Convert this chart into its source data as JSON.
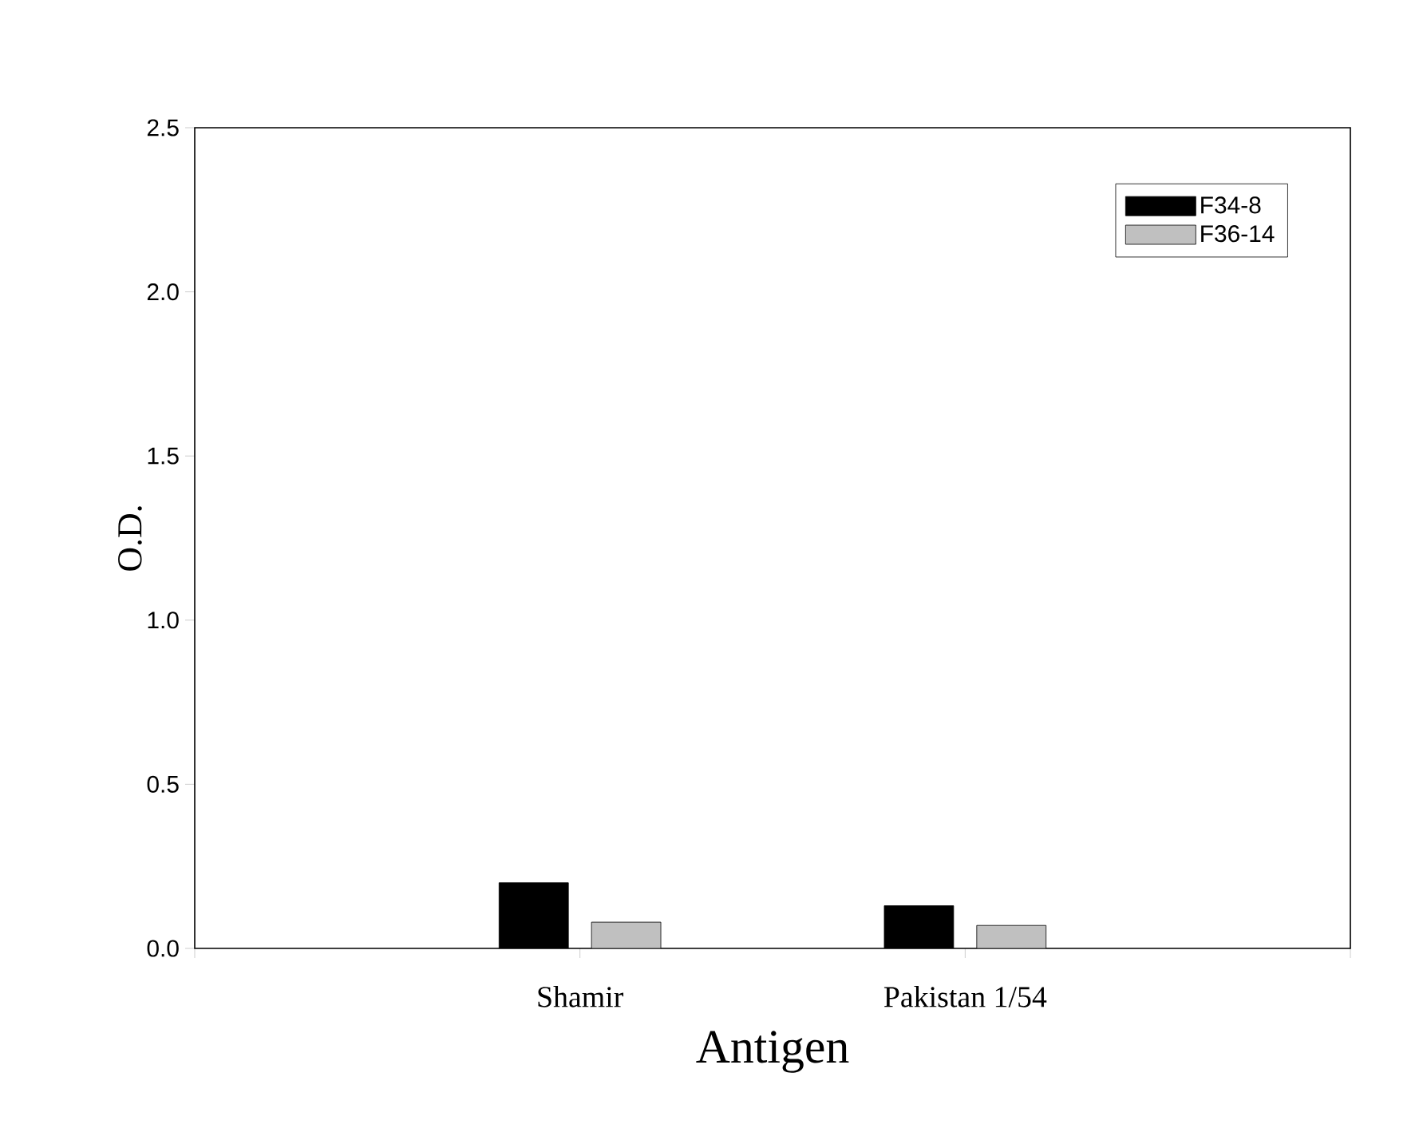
{
  "chart_data": {
    "type": "bar",
    "xlabel": "Antigen",
    "ylabel": "O.D.",
    "categories": [
      null,
      "Shamir",
      "Pakistan 1/54",
      null
    ],
    "series": [
      {
        "name": "F34-8",
        "color": "#000000",
        "values": [
          null,
          0.2,
          0.13,
          null
        ]
      },
      {
        "name": "F36-14",
        "color": "#c0c0c0",
        "values": [
          null,
          0.08,
          0.07,
          null
        ]
      }
    ],
    "ylim": [
      0,
      2.5
    ],
    "yticks": [
      {
        "value": 0,
        "label": "0.0"
      },
      {
        "value": 0.5,
        "label": "0.5"
      },
      {
        "value": 1,
        "label": "1.0"
      },
      {
        "value": 1.5,
        "label": "1.5"
      },
      {
        "value": 2,
        "label": "2.0"
      },
      {
        "value": 2.5,
        "label": "2.5"
      }
    ],
    "legend": "top right",
    "grid": false
  }
}
